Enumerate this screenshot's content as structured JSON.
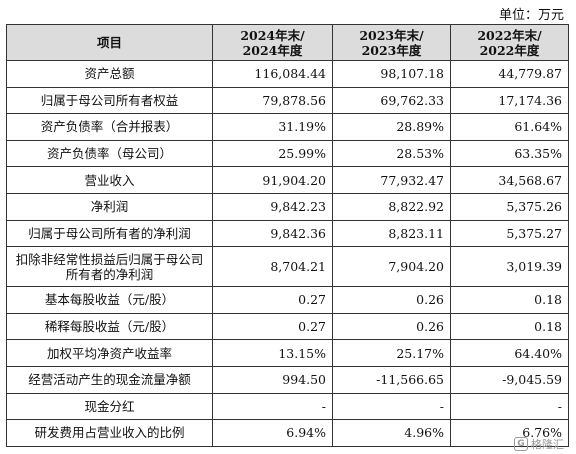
{
  "unit_label": "单位：万元",
  "header": {
    "item": "项目",
    "col1": [
      "2024年末/",
      "2024年度"
    ],
    "col2": [
      "2023年末/",
      "2023年度"
    ],
    "col3": [
      "2022年末/",
      "2022年度"
    ]
  },
  "rows": [
    {
      "label": "资产总额",
      "v": [
        "116,084.44",
        "98,107.18",
        "44,779.87"
      ]
    },
    {
      "label": "归属于母公司所有者权益",
      "v": [
        "79,878.56",
        "69,762.33",
        "17,174.36"
      ]
    },
    {
      "label": "资产负债率（合并报表）",
      "v": [
        "31.19%",
        "28.89%",
        "61.64%"
      ]
    },
    {
      "label": "资产负债率（母公司）",
      "v": [
        "25.99%",
        "28.53%",
        "63.35%"
      ]
    },
    {
      "label": "营业收入",
      "v": [
        "91,904.20",
        "77,932.47",
        "34,568.67"
      ]
    },
    {
      "label": "净利润",
      "v": [
        "9,842.23",
        "8,822.92",
        "5,375.26"
      ]
    },
    {
      "label": "归属于母公司所有者的净利润",
      "v": [
        "9,842.36",
        "8,823.11",
        "5,375.27"
      ]
    },
    {
      "label": "扣除非经常性损益后归属于母公司所有者的净利润",
      "v": [
        "8,704.21",
        "7,904.20",
        "3,019.39"
      ]
    },
    {
      "label": "基本每股收益（元/股）",
      "v": [
        "0.27",
        "0.26",
        "0.18"
      ]
    },
    {
      "label": "稀释每股收益（元/股）",
      "v": [
        "0.27",
        "0.26",
        "0.18"
      ]
    },
    {
      "label": "加权平均净资产收益率",
      "v": [
        "13.15%",
        "25.17%",
        "64.40%"
      ]
    },
    {
      "label": "经营活动产生的现金流量净额",
      "v": [
        "994.50",
        "-11,566.65",
        "-9,045.59"
      ]
    },
    {
      "label": "现金分红",
      "v": [
        "-",
        "-",
        "-"
      ]
    },
    {
      "label": "研发费用占营业收入的比例",
      "v": [
        "6.94%",
        "4.96%",
        "6.76%"
      ]
    }
  ],
  "watermark": {
    "logo": "G",
    "text": "格隆汇"
  }
}
